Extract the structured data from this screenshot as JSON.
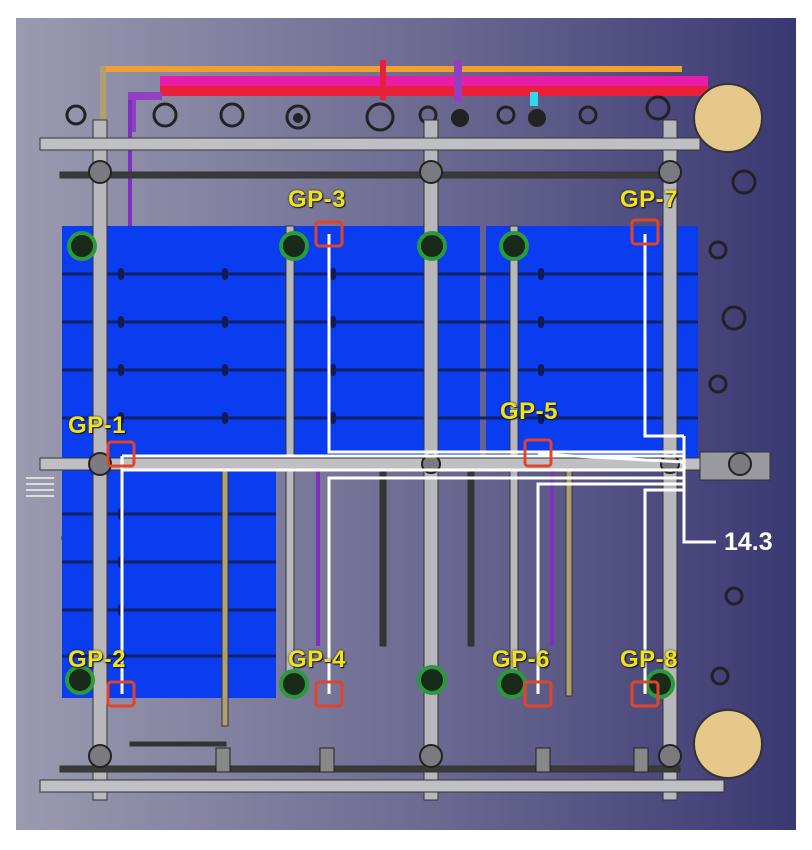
{
  "colors": {
    "panel_blue": "#0a3cf0",
    "marker_red": "#e0452a",
    "label_yellow": "#f2e21a",
    "sensor_line": "#ffffff",
    "pipe_magenta": "#e81ca8",
    "pipe_red": "#e8203a",
    "pipe_orange": "#f0a030",
    "wheel_tan": "#e6c98a"
  },
  "gauge_points": [
    {
      "id": "GP-1",
      "label": "GP-1"
    },
    {
      "id": "GP-2",
      "label": "GP-2"
    },
    {
      "id": "GP-3",
      "label": "GP-3"
    },
    {
      "id": "GP-4",
      "label": "GP-4"
    },
    {
      "id": "GP-5",
      "label": "GP-5"
    },
    {
      "id": "GP-6",
      "label": "GP-6"
    },
    {
      "id": "GP-7",
      "label": "GP-7"
    },
    {
      "id": "GP-8",
      "label": "GP-8"
    }
  ],
  "output": {
    "value": "14.3"
  }
}
